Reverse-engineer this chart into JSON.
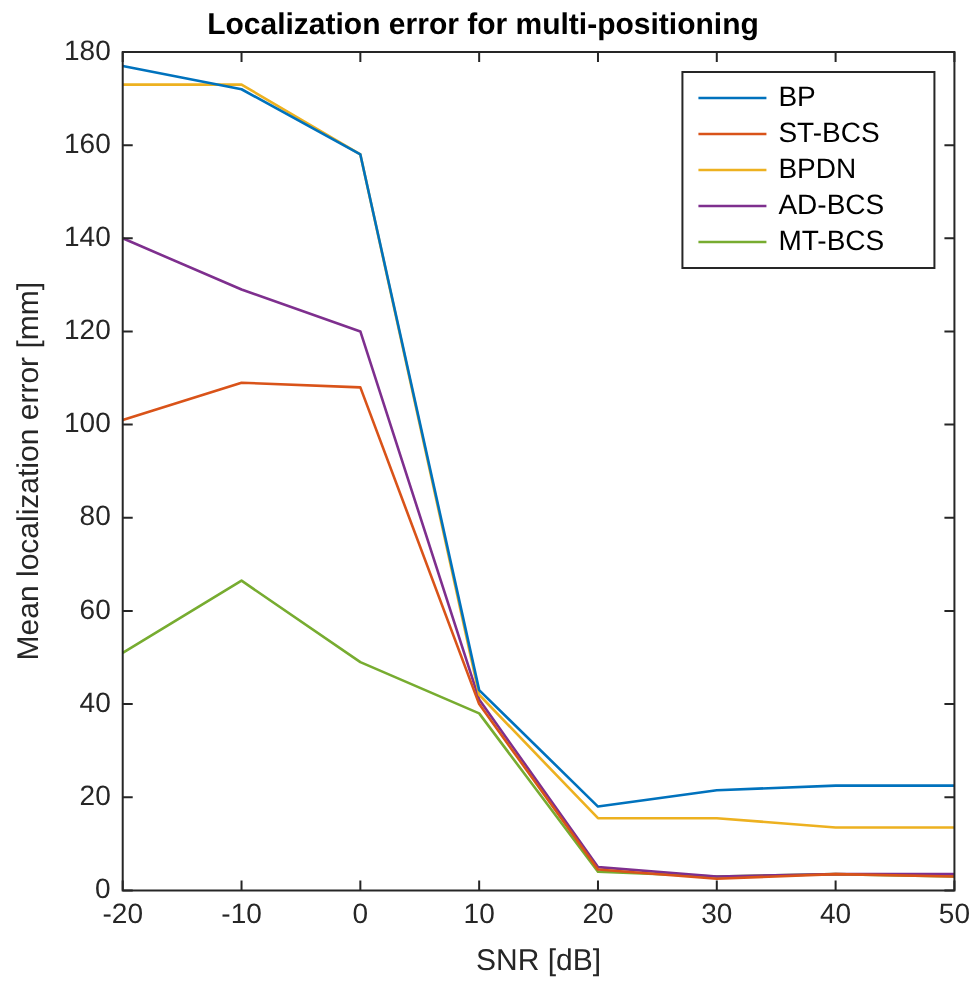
{
  "chart_data": {
    "type": "line",
    "title": "Localization error for multi-positioning",
    "xlabel": "SNR [dB]",
    "ylabel": "Mean localization error [mm]",
    "x": [
      -20,
      -10,
      0,
      10,
      20,
      30,
      40,
      50
    ],
    "xlim": [
      -20,
      50
    ],
    "xticks": [
      -20,
      -10,
      0,
      10,
      20,
      30,
      40,
      50
    ],
    "ylim": [
      0,
      180
    ],
    "yticks": [
      0,
      20,
      40,
      60,
      80,
      100,
      120,
      140,
      160,
      180
    ],
    "grid": false,
    "legend": "top right",
    "marker": "none",
    "line_style": "solid",
    "series": [
      {
        "name": "BP",
        "color": "#0072bd",
        "values": [
          177,
          172,
          158,
          43,
          18,
          21.5,
          22.5,
          22.5
        ]
      },
      {
        "name": "ST-BCS",
        "color": "#d95319",
        "values": [
          101,
          109,
          108,
          40,
          4.5,
          2.5,
          3.5,
          3
        ]
      },
      {
        "name": "BPDN",
        "color": "#edb120",
        "values": [
          173,
          173,
          158,
          42,
          15.5,
          15.5,
          13.5,
          13.5
        ]
      },
      {
        "name": "AD-BCS",
        "color": "#7e2f8e",
        "values": [
          140,
          129,
          120,
          41,
          5,
          3,
          3.5,
          3.5
        ]
      },
      {
        "name": "MT-BCS",
        "color": "#77ac30",
        "values": [
          51,
          66.5,
          49,
          38,
          4,
          3,
          3.5,
          3
        ]
      }
    ]
  }
}
